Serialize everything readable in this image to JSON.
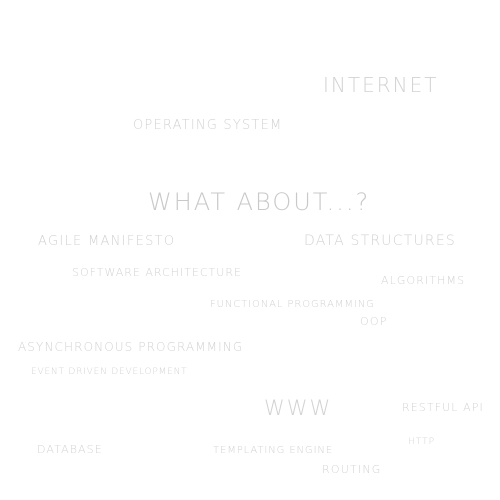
{
  "headline": "WHAT ABOUT...?",
  "terms": {
    "internet": "INTERNET",
    "operating_system": "OPERATING SYSTEM",
    "agile_manifesto": "AGILE MANIFESTO",
    "data_structures": "DATA STRUCTURES",
    "software_architecture": "SOFTWARE ARCHITECTURE",
    "algorithms": "ALGORITHMS",
    "functional_programming": "FUNCTIONAL PROGRAMMING",
    "oop": "OOP",
    "asynchronous_programming": "ASYNCHRONOUS PROGRAMMING",
    "event_driven_development": "EVENT DRIVEN DEVELOPMENT",
    "www": "WWW",
    "restful_api": "RESTFUL API",
    "database": "DATABASE",
    "templating_engine": "TEMPLATING ENGINE",
    "http": "HTTP",
    "routing": "ROUTING"
  },
  "colors": {
    "background": "#ffffff",
    "text": "#d2d2d2"
  }
}
